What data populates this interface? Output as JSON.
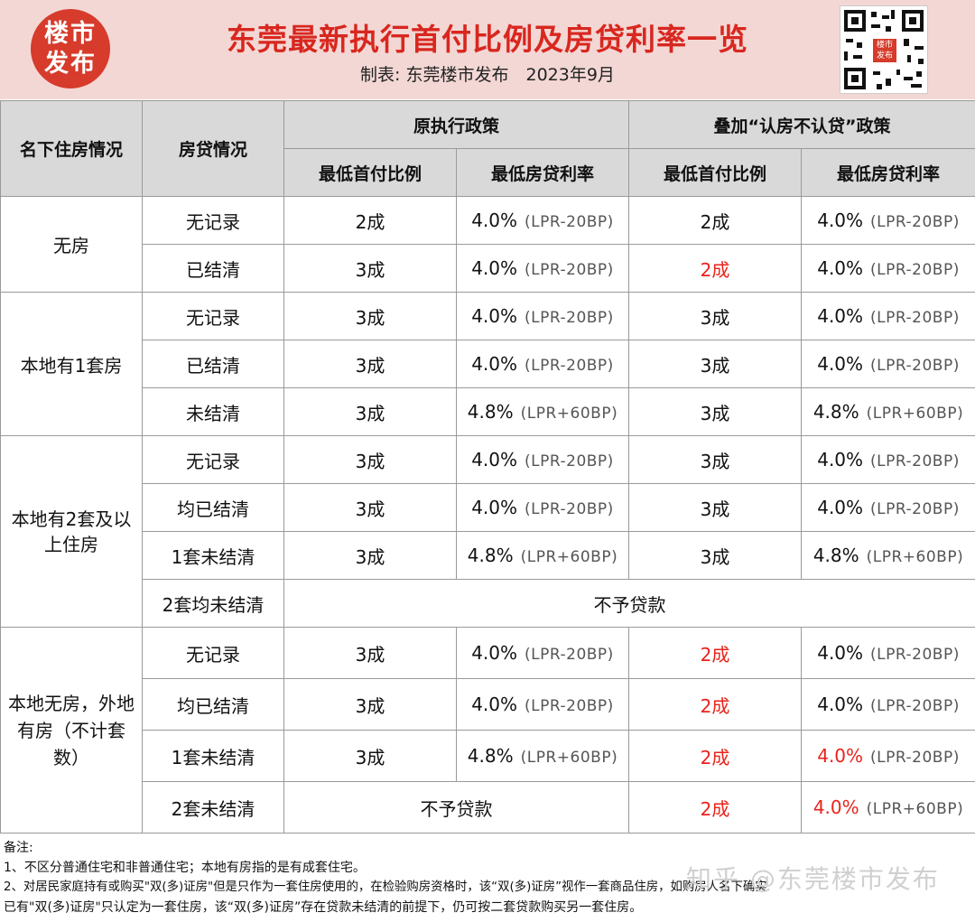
{
  "header": {
    "logo_line1": "楼市",
    "logo_line2": "发布",
    "title": "东莞最新执行首付比例及房贷利率一览",
    "subtitle": "制表: 东莞楼市发布　2023年9月",
    "qr_badge_line1": "楼市",
    "qr_badge_line2": "发布"
  },
  "table": {
    "col_house": "名下住房情况",
    "col_loan": "房贷情况",
    "group_original": "原执行政策",
    "group_new": "叠加“认房不认贷”政策",
    "sub_down": "最低首付比例",
    "sub_rate": "最低房贷利率",
    "rate_40": "4.0%",
    "rate_48": "4.8%",
    "lpr_minus": "(LPR-20BP)",
    "lpr_plus": "(LPR+60BP)",
    "g1": {
      "label": "无房",
      "r1": {
        "loan": "无记录",
        "o_down": "2成",
        "n_down": "2成"
      },
      "r2": {
        "loan": "已结清",
        "o_down": "3成",
        "n_down": "2成"
      }
    },
    "g2": {
      "label": "本地有1套房",
      "r1": {
        "loan": "无记录",
        "o_down": "3成",
        "n_down": "3成"
      },
      "r2": {
        "loan": "已结清",
        "o_down": "3成",
        "n_down": "3成"
      },
      "r3": {
        "loan": "未结清",
        "o_down": "3成",
        "n_down": "3成"
      }
    },
    "g3": {
      "label": "本地有2套及以上住房",
      "r1": {
        "loan": "无记录",
        "o_down": "3成",
        "n_down": "3成"
      },
      "r2": {
        "loan": "均已结清",
        "o_down": "3成",
        "n_down": "3成"
      },
      "r3": {
        "loan": "1套未结清",
        "o_down": "3成",
        "n_down": "3成"
      },
      "r4": {
        "loan": "2套均未结清",
        "no_loan": "不予贷款"
      }
    },
    "g4": {
      "label": "本地无房，外地有房（不计套数）",
      "r1": {
        "loan": "无记录",
        "o_down": "3成",
        "n_down": "2成"
      },
      "r2": {
        "loan": "均已结清",
        "o_down": "3成",
        "n_down": "2成"
      },
      "r3": {
        "loan": "1套未结清",
        "o_down": "3成",
        "n_down": "2成"
      },
      "r4": {
        "loan": "2套未结清",
        "no_loan": "不予贷款",
        "n_down": "2成"
      }
    }
  },
  "notes": {
    "heading": "备注:",
    "line1": "1、不区分普通住宅和非普通住宅；本地有房指的是有成套住宅。",
    "line2": "2、对居民家庭持有或购买\"双(多)证房\"但是只作为一套住房使用的，在检验购房资格时，该“双(多)证房”视作一套商品住房，如购房人名下确实",
    "line3": "已有\"双(多)证房\"只认定为一套住房，该“双(多)证房”存在贷款未结清的前提下，仍可按二套贷款购买另一套住房。"
  },
  "watermark": "知乎 @东莞楼市发布",
  "colors": {
    "accent_red": "#e8231b",
    "header_bg": "#f3d7d4",
    "table_head_bg": "#d9d9d9"
  }
}
